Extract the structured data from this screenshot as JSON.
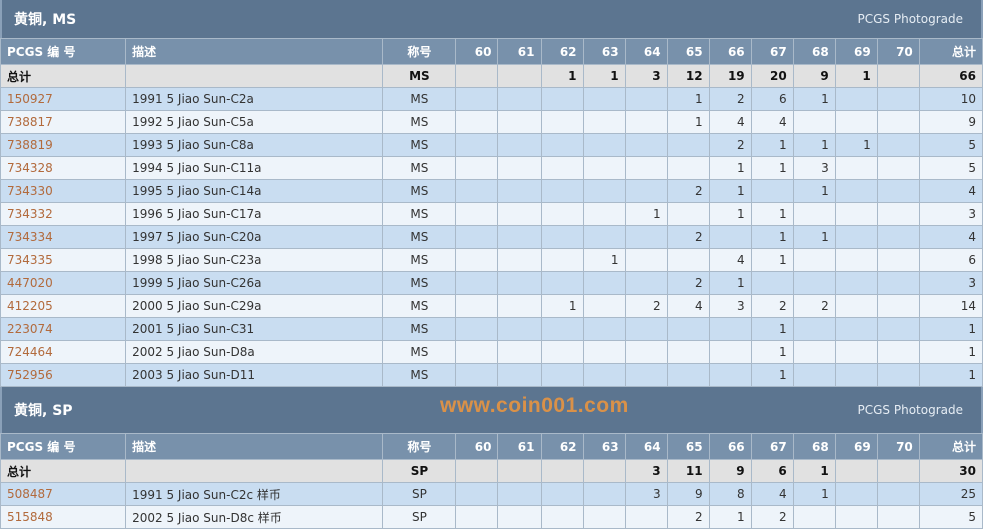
{
  "sections": [
    {
      "title": "黄铜, MS",
      "photograde": "PCGS Photograde",
      "headers": [
        "PCGS 编 号",
        "描述",
        "称号",
        "60",
        "61",
        "62",
        "63",
        "64",
        "65",
        "66",
        "67",
        "68",
        "69",
        "70",
        "总计"
      ],
      "total": [
        "总计",
        "",
        "MS",
        "",
        "",
        "1",
        "1",
        "3",
        "12",
        "19",
        "20",
        "9",
        "1",
        "",
        "66"
      ],
      "rows": [
        [
          "150927",
          "1991 5 Jiao Sun-C2a",
          "MS",
          "",
          "",
          "",
          "",
          "",
          "1",
          "2",
          "6",
          "1",
          "",
          "",
          "10"
        ],
        [
          "738817",
          "1992 5 Jiao Sun-C5a",
          "MS",
          "",
          "",
          "",
          "",
          "",
          "1",
          "4",
          "4",
          "",
          "",
          "",
          "9"
        ],
        [
          "738819",
          "1993 5 Jiao Sun-C8a",
          "MS",
          "",
          "",
          "",
          "",
          "",
          "",
          "2",
          "1",
          "1",
          "1",
          "",
          "5"
        ],
        [
          "734328",
          "1994 5 Jiao Sun-C11a",
          "MS",
          "",
          "",
          "",
          "",
          "",
          "",
          "1",
          "1",
          "3",
          "",
          "",
          "5"
        ],
        [
          "734330",
          "1995 5 Jiao Sun-C14a",
          "MS",
          "",
          "",
          "",
          "",
          "",
          "2",
          "1",
          "",
          "1",
          "",
          "",
          "4"
        ],
        [
          "734332",
          "1996 5 Jiao Sun-C17a",
          "MS",
          "",
          "",
          "",
          "",
          "1",
          "",
          "1",
          "1",
          "",
          "",
          "",
          "3"
        ],
        [
          "734334",
          "1997 5 Jiao Sun-C20a",
          "MS",
          "",
          "",
          "",
          "",
          "",
          "2",
          "",
          "1",
          "1",
          "",
          "",
          "4"
        ],
        [
          "734335",
          "1998 5 Jiao Sun-C23a",
          "MS",
          "",
          "",
          "",
          "1",
          "",
          "",
          "4",
          "1",
          "",
          "",
          "",
          "6"
        ],
        [
          "447020",
          "1999 5 Jiao Sun-C26a",
          "MS",
          "",
          "",
          "",
          "",
          "",
          "2",
          "1",
          "",
          "",
          "",
          "",
          "3"
        ],
        [
          "412205",
          "2000 5 Jiao Sun-C29a",
          "MS",
          "",
          "",
          "1",
          "",
          "2",
          "4",
          "3",
          "2",
          "2",
          "",
          "",
          "14"
        ],
        [
          "223074",
          "2001 5 Jiao Sun-C31",
          "MS",
          "",
          "",
          "",
          "",
          "",
          "",
          "",
          "1",
          "",
          "",
          "",
          "1"
        ],
        [
          "724464",
          "2002 5 Jiao Sun-D8a",
          "MS",
          "",
          "",
          "",
          "",
          "",
          "",
          "",
          "1",
          "",
          "",
          "",
          "1"
        ],
        [
          "752956",
          "2003 5 Jiao Sun-D11",
          "MS",
          "",
          "",
          "",
          "",
          "",
          "",
          "",
          "1",
          "",
          "",
          "",
          "1"
        ]
      ]
    },
    {
      "title": "黄铜, SP",
      "photograde": "PCGS Photograde",
      "headers": [
        "PCGS 编 号",
        "描述",
        "称号",
        "60",
        "61",
        "62",
        "63",
        "64",
        "65",
        "66",
        "67",
        "68",
        "69",
        "70",
        "总计"
      ],
      "total": [
        "总计",
        "",
        "SP",
        "",
        "",
        "",
        "",
        "3",
        "11",
        "9",
        "6",
        "1",
        "",
        "",
        "30"
      ],
      "rows": [
        [
          "508487",
          "1991 5 Jiao Sun-C2c 样币",
          "SP",
          "",
          "",
          "",
          "",
          "3",
          "9",
          "8",
          "4",
          "1",
          "",
          "",
          "25"
        ],
        [
          "515848",
          "2002 5 Jiao Sun-D8c 样币",
          "SP",
          "",
          "",
          "",
          "",
          "",
          "2",
          "1",
          "2",
          "",
          "",
          "",
          "5"
        ]
      ]
    }
  ],
  "watermark": "www.coin001.com",
  "colors": {
    "header": "#5c7590",
    "column_header": "#7891ab",
    "link": "#b26a3c",
    "row_blue": "#c9ddf1",
    "row_light": "#eef4fa"
  }
}
